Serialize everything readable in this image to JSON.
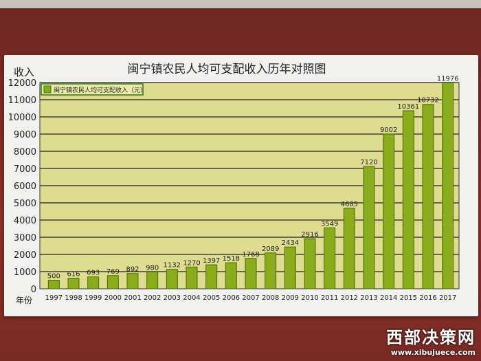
{
  "chart_data": {
    "type": "bar",
    "title": "闽宁镇农民人均可支配收入历年对照图",
    "ylabel": "收入",
    "xlabel": "年份",
    "ylim": [
      0,
      12000
    ],
    "yticks": [
      0,
      1000,
      2000,
      3000,
      4000,
      5000,
      6000,
      7000,
      8000,
      9000,
      10000,
      11000,
      12000
    ],
    "grid": true,
    "legend_position": "top-left",
    "categories": [
      "1997",
      "1998",
      "1999",
      "2000",
      "2001",
      "2002",
      "2003",
      "2004",
      "2005",
      "2006",
      "2007",
      "2008",
      "2009",
      "2010",
      "2011",
      "2012",
      "2013",
      "2014",
      "2015",
      "2016",
      "2017"
    ],
    "series": [
      {
        "name": "闽宁镇农民人均可支配收入（元）",
        "values": [
          500,
          616,
          693,
          769,
          892,
          980,
          1132,
          1270,
          1397,
          1518,
          1768,
          2089,
          2434,
          2916,
          3549,
          4685,
          7120,
          9002,
          10361,
          10732,
          11976
        ]
      }
    ],
    "colors": {
      "bar": "#8aab1c",
      "bar_edge": "#4d6a0a",
      "plot_bg": "#dedd8f"
    }
  },
  "watermark": {
    "name": "西部决策网",
    "url": "www.xibujuece.com"
  }
}
